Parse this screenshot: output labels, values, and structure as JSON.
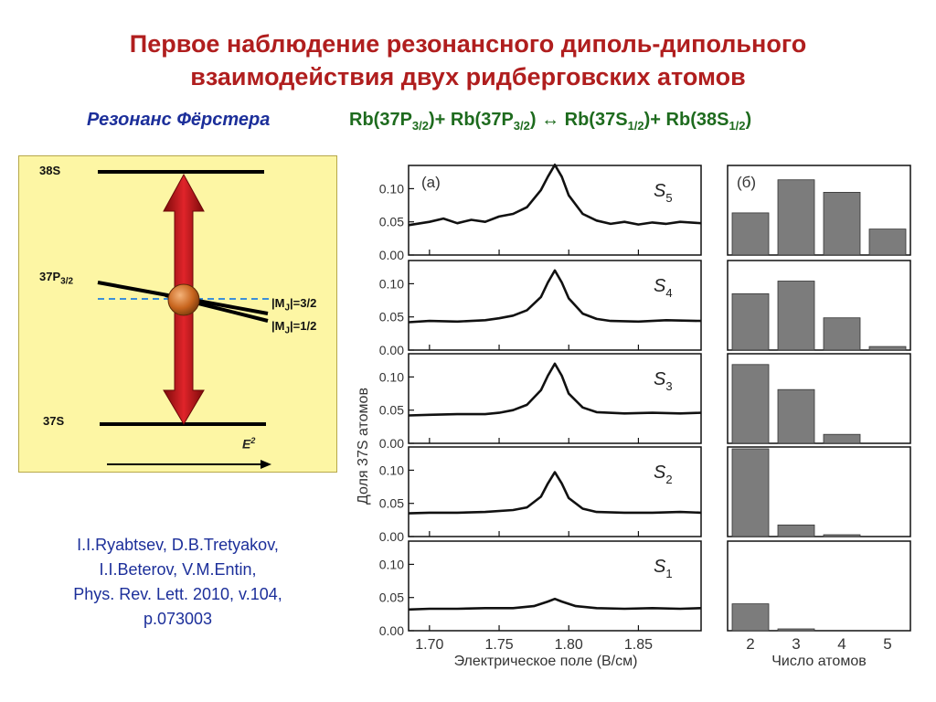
{
  "header": {
    "title_line1": "Первое наблюдение резонансного диполь-дипольного",
    "title_line2": "взаимодействия двух ридберговских атомов"
  },
  "subtitle": {
    "label": "Резонанс Фёрстера",
    "reaction": {
      "p1": "Rb(37P",
      "s1": "3/2",
      "p2": ")+ Rb(37P",
      "s2": "3/2",
      "p3": ") ",
      "arrow": "↔",
      "p4": " Rb(37S",
      "s3": "1/2",
      "p5": ")+ Rb(38S",
      "s4": "1/2",
      "p6": ")"
    }
  },
  "energy_diagram": {
    "level_top": "38S",
    "level_mid": "37P",
    "level_mid_sub": "3/2",
    "level_bottom": "37S",
    "mj_a_pre": "|M",
    "mj_a_sub": "J",
    "mj_a_post": "|=3/2",
    "mj_b_pre": "|M",
    "mj_b_sub": "J",
    "mj_b_post": "|=1/2",
    "field": "E",
    "field_sup": "2",
    "colors": {
      "background": "#fdf6a4",
      "arrow": "#c0181c",
      "atom": "#c8651e",
      "dashed": "#3c8fd8"
    }
  },
  "citation": {
    "line1": "I.I.Ryabtsev, D.B.Tretyakov,",
    "line2": "I.I.Beterov, V.M.Entin,",
    "line3": "Phys. Rev. Lett. 2010, v.104,",
    "line4": "p.073003"
  },
  "chart_data": [
    {
      "type": "line",
      "panel_label": "(а)",
      "xlabel": "Электрическое поле (В/см)",
      "ylabel": "Доля 37S атомов",
      "xlim": [
        1.685,
        1.895
      ],
      "ylim": [
        0.0,
        0.135
      ],
      "xticks": [
        "1.70",
        "1.75",
        "1.80",
        "1.85"
      ],
      "xtick_values": [
        1.7,
        1.75,
        1.8,
        1.85
      ],
      "yticks": [
        "0.00",
        "0.05",
        "0.10"
      ],
      "ytick_values": [
        0.0,
        0.05,
        0.1
      ],
      "color": "#111111",
      "series": [
        {
          "name": "S5",
          "base": "S",
          "sub": "5",
          "x": [
            1.685,
            1.7,
            1.71,
            1.72,
            1.73,
            1.74,
            1.75,
            1.76,
            1.77,
            1.78,
            1.785,
            1.79,
            1.795,
            1.8,
            1.81,
            1.82,
            1.83,
            1.84,
            1.85,
            1.86,
            1.87,
            1.88,
            1.895
          ],
          "y": [
            0.045,
            0.05,
            0.055,
            0.048,
            0.053,
            0.05,
            0.058,
            0.062,
            0.072,
            0.098,
            0.118,
            0.136,
            0.118,
            0.09,
            0.062,
            0.052,
            0.047,
            0.05,
            0.046,
            0.049,
            0.047,
            0.05,
            0.048
          ]
        },
        {
          "name": "S4",
          "base": "S",
          "sub": "4",
          "x": [
            1.685,
            1.7,
            1.72,
            1.74,
            1.75,
            1.76,
            1.77,
            1.78,
            1.785,
            1.79,
            1.795,
            1.8,
            1.81,
            1.82,
            1.83,
            1.85,
            1.87,
            1.895
          ],
          "y": [
            0.042,
            0.044,
            0.043,
            0.045,
            0.048,
            0.052,
            0.06,
            0.08,
            0.102,
            0.12,
            0.102,
            0.078,
            0.055,
            0.047,
            0.044,
            0.043,
            0.045,
            0.044
          ]
        },
        {
          "name": "S3",
          "base": "S",
          "sub": "3",
          "x": [
            1.685,
            1.7,
            1.72,
            1.74,
            1.75,
            1.76,
            1.77,
            1.78,
            1.785,
            1.79,
            1.795,
            1.8,
            1.81,
            1.82,
            1.84,
            1.86,
            1.88,
            1.895
          ],
          "y": [
            0.042,
            0.043,
            0.044,
            0.044,
            0.046,
            0.05,
            0.058,
            0.08,
            0.102,
            0.12,
            0.102,
            0.075,
            0.054,
            0.047,
            0.045,
            0.046,
            0.045,
            0.046
          ]
        },
        {
          "name": "S2",
          "base": "S",
          "sub": "2",
          "x": [
            1.685,
            1.7,
            1.72,
            1.74,
            1.76,
            1.77,
            1.78,
            1.785,
            1.79,
            1.795,
            1.8,
            1.81,
            1.82,
            1.84,
            1.86,
            1.88,
            1.895
          ],
          "y": [
            0.035,
            0.036,
            0.036,
            0.037,
            0.04,
            0.044,
            0.06,
            0.08,
            0.097,
            0.08,
            0.058,
            0.042,
            0.037,
            0.036,
            0.036,
            0.037,
            0.036
          ]
        },
        {
          "name": "S1",
          "base": "S",
          "sub": "1",
          "x": [
            1.685,
            1.7,
            1.72,
            1.74,
            1.76,
            1.775,
            1.785,
            1.79,
            1.795,
            1.805,
            1.82,
            1.84,
            1.86,
            1.88,
            1.895
          ],
          "y": [
            0.032,
            0.033,
            0.033,
            0.034,
            0.034,
            0.037,
            0.044,
            0.048,
            0.044,
            0.037,
            0.034,
            0.033,
            0.034,
            0.033,
            0.034
          ]
        }
      ]
    },
    {
      "type": "bar",
      "panel_label": "(б)",
      "xlabel": "Число атомов",
      "categories": [
        "2",
        "3",
        "4",
        "5"
      ],
      "ylim": [
        0.0,
        1.0
      ],
      "color": "#7c7c7c",
      "series": [
        {
          "name": "S5",
          "values": [
            0.47,
            0.84,
            0.7,
            0.29
          ]
        },
        {
          "name": "S4",
          "values": [
            0.63,
            0.77,
            0.36,
            0.04
          ]
        },
        {
          "name": "S3",
          "values": [
            0.88,
            0.6,
            0.1,
            0.0
          ]
        },
        {
          "name": "S2",
          "values": [
            0.98,
            0.13,
            0.02,
            0.0
          ]
        },
        {
          "name": "S1",
          "values": [
            0.3,
            0.02,
            0.0,
            0.0
          ]
        }
      ]
    }
  ]
}
